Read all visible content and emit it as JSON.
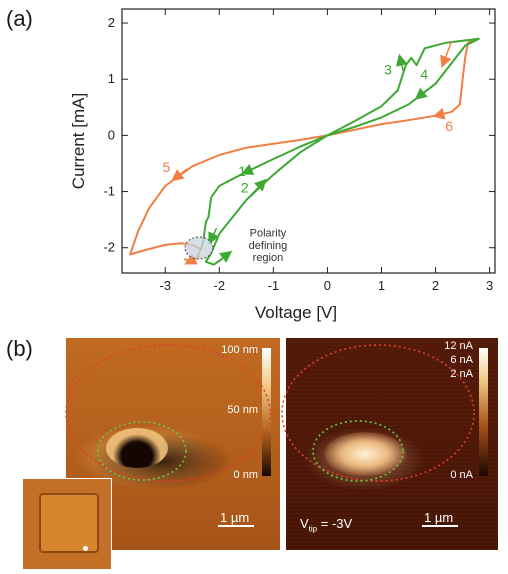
{
  "panel_a": {
    "label": "(a)",
    "chart_data": {
      "type": "line",
      "xlabel": "Voltage [V]",
      "ylabel": "Current [mA]",
      "xlim": [
        -3.8,
        3.1
      ],
      "ylim": [
        -2.45,
        2.25
      ],
      "x_ticks": [
        -3,
        -2,
        -1,
        0,
        1,
        2,
        3
      ],
      "x_tick_labels": [
        "-3",
        "-2",
        "-1",
        "0",
        "1",
        "2",
        "3"
      ],
      "y_ticks": [
        -2,
        -1,
        0,
        1,
        2
      ],
      "y_tick_labels": [
        "-2",
        "-1",
        "0",
        "1",
        "2"
      ],
      "grid": false,
      "series": [
        {
          "color": "#ef7f45",
          "points": [
            [
              2.75,
              1.72
            ],
            [
              2.6,
              1.65
            ],
            [
              2.55,
              1.4
            ],
            [
              2.5,
              1.0
            ],
            [
              2.45,
              0.55
            ],
            [
              2.3,
              0.42
            ],
            [
              2.0,
              0.35
            ],
            [
              1.5,
              0.27
            ],
            [
              1.0,
              0.2
            ],
            [
              0.5,
              0.1
            ],
            [
              0.0,
              0.0
            ],
            [
              -0.5,
              -0.08
            ],
            [
              -1.0,
              -0.15
            ],
            [
              -1.5,
              -0.22
            ],
            [
              -2.0,
              -0.35
            ],
            [
              -2.5,
              -0.55
            ],
            [
              -3.0,
              -0.9
            ],
            [
              -3.3,
              -1.3
            ],
            [
              -3.5,
              -1.7
            ],
            [
              -3.65,
              -2.12
            ],
            [
              -3.4,
              -2.05
            ],
            [
              -3.0,
              -1.95
            ],
            [
              -2.7,
              -1.92
            ],
            [
              -2.5,
              -1.95
            ],
            [
              -2.35,
              -2.02
            ],
            [
              -2.4,
              -2.15
            ],
            [
              -2.5,
              -2.25
            ],
            [
              -2.65,
              -2.2
            ]
          ]
        },
        {
          "color": "#3da832",
          "points": [
            [
              -2.35,
              -2.05
            ],
            [
              -2.3,
              -1.9
            ],
            [
              -2.25,
              -1.55
            ],
            [
              -2.2,
              -1.45
            ],
            [
              -2.15,
              -1.1
            ],
            [
              -2.0,
              -0.9
            ],
            [
              -1.5,
              -0.65
            ],
            [
              -1.0,
              -0.42
            ],
            [
              -0.5,
              -0.2
            ],
            [
              0.0,
              0.0
            ],
            [
              0.5,
              0.25
            ],
            [
              1.0,
              0.52
            ],
            [
              1.3,
              0.8
            ],
            [
              1.45,
              1.25
            ],
            [
              1.55,
              1.38
            ],
            [
              1.65,
              1.25
            ],
            [
              1.8,
              1.55
            ],
            [
              2.2,
              1.65
            ],
            [
              2.8,
              1.72
            ],
            [
              2.55,
              1.6
            ],
            [
              2.0,
              0.92
            ],
            [
              1.5,
              0.55
            ],
            [
              1.0,
              0.32
            ],
            [
              0.5,
              0.15
            ],
            [
              0.0,
              0.0
            ],
            [
              -0.5,
              -0.3
            ],
            [
              -1.0,
              -0.7
            ],
            [
              -1.5,
              -1.15
            ],
            [
              -2.0,
              -1.75
            ],
            [
              -2.15,
              -2.1
            ],
            [
              -2.25,
              -2.25
            ],
            [
              -2.1,
              -2.3
            ],
            [
              -1.95,
              -2.2
            ]
          ]
        }
      ],
      "annotations": [
        {
          "text": "1",
          "color": "#3da832",
          "x": -1.65,
          "y": -0.72
        },
        {
          "text": "2",
          "color": "#3da832",
          "x": -1.6,
          "y": -1.02
        },
        {
          "text": "3",
          "color": "#3da832",
          "x": 1.05,
          "y": 1.08
        },
        {
          "text": "4",
          "color": "#3da832",
          "x": 1.72,
          "y": 1.0
        },
        {
          "text": "5",
          "color": "#ef7f45",
          "x": -3.05,
          "y": -0.65
        },
        {
          "text": "6",
          "color": "#ef7f45",
          "x": 2.18,
          "y": 0.08
        },
        {
          "text": "Polarity",
          "color": "#333333",
          "x": -1.1,
          "y": -1.8
        },
        {
          "text": "defining",
          "color": "#333333",
          "x": -1.1,
          "y": -2.02
        },
        {
          "text": "region",
          "color": "#333333",
          "x": -1.1,
          "y": -2.24
        }
      ],
      "highlight_region": {
        "center": [
          -2.35,
          -2.0
        ],
        "radius": [
          0.2,
          0.2
        ],
        "label": "Polarity defining region"
      }
    }
  },
  "panel_b": {
    "label": "(b)",
    "topography": {
      "colorbar_labels": [
        "100 nm",
        "50 nm",
        "0 nm"
      ],
      "scale_bar_label": "1 µm"
    },
    "current_map": {
      "colorbar_labels": [
        "12 nA",
        "6 nA",
        "2 nA",
        "0 nA"
      ],
      "tip_voltage_label": "V",
      "tip_voltage_subscript": "tip",
      "tip_voltage_value": " = -3V",
      "scale_bar_label": "1 µm"
    },
    "colors": {
      "outer_ellipse": "#e53b2f",
      "inner_ellipse": "#5ccf3f",
      "topography_bg": "#b8631e",
      "current_bg": "#4a1808"
    }
  }
}
